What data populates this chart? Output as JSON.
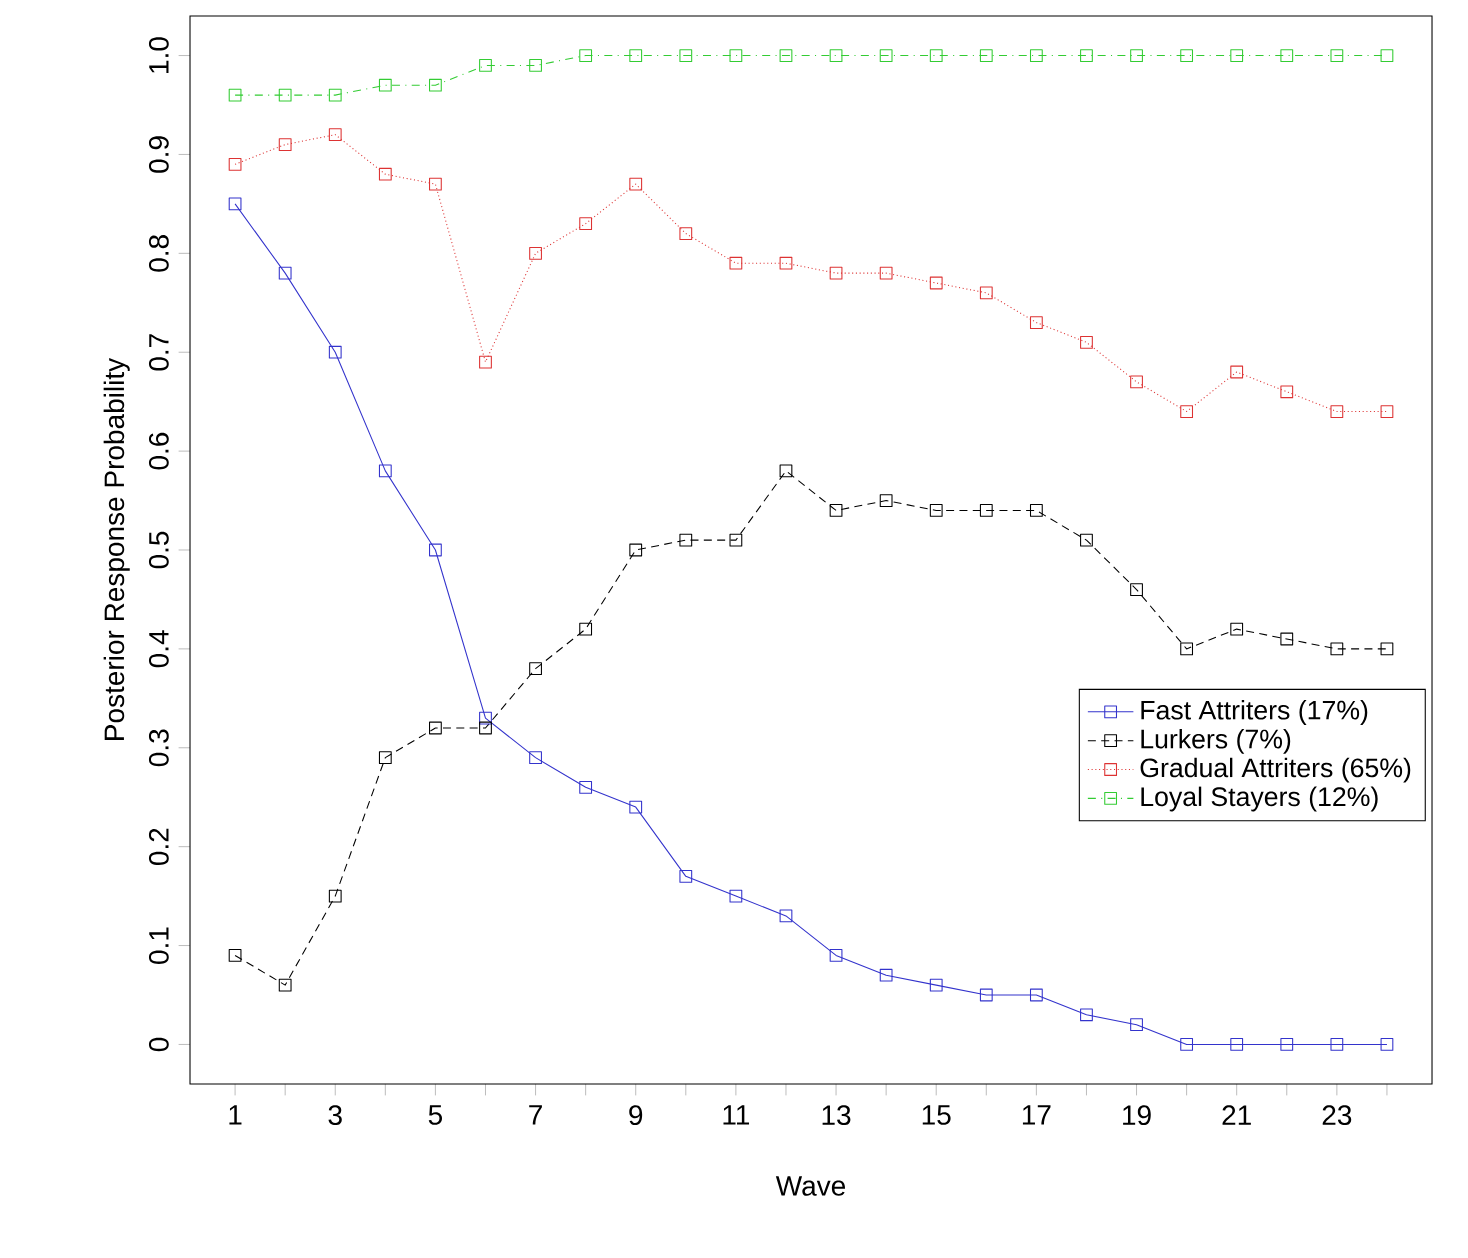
{
  "chart_data": {
    "type": "line",
    "xlabel": "Wave",
    "ylabel": "Posterior Response Probability",
    "x": [
      1,
      2,
      3,
      4,
      5,
      6,
      7,
      8,
      9,
      10,
      11,
      12,
      13,
      14,
      15,
      16,
      17,
      18,
      19,
      20,
      21,
      22,
      23,
      24
    ],
    "xlim": [
      0.1,
      24.9
    ],
    "ylim": [
      -0.04,
      1.04
    ],
    "xticks": [
      1,
      {
        "value": 2,
        "label": null
      },
      3,
      {
        "value": 4,
        "label": null
      },
      5,
      {
        "value": 6,
        "label": null
      },
      7,
      {
        "value": 8,
        "label": null
      },
      9,
      {
        "value": 10,
        "label": null
      },
      11,
      {
        "value": 12,
        "label": null
      },
      13,
      {
        "value": 14,
        "label": null
      },
      15,
      {
        "value": 16,
        "label": null
      },
      17,
      {
        "value": 18,
        "label": null
      },
      19,
      {
        "value": 20,
        "label": null
      },
      21,
      {
        "value": 22,
        "label": null
      },
      23,
      {
        "value": 24,
        "label": null
      }
    ],
    "yticks": [
      0,
      0.1,
      0.2,
      0.3,
      0.4,
      0.5,
      0.6,
      0.7,
      0.8,
      0.9,
      {
        "value": 1.0,
        "label": "1.0"
      }
    ],
    "marker": "square",
    "legend": "right",
    "grid": false,
    "series": [
      {
        "name": "Fast Attriters (17%)",
        "color": "#3333cc",
        "line_style": "solid",
        "values": [
          0.85,
          0.78,
          0.7,
          0.58,
          0.5,
          0.33,
          0.29,
          0.26,
          0.24,
          0.17,
          0.15,
          0.13,
          0.09,
          0.07,
          0.06,
          0.05,
          0.05,
          0.03,
          0.02,
          0,
          0,
          0,
          0,
          0
        ]
      },
      {
        "name": "Lurkers (7%)",
        "color": "#000000",
        "line_style": "dashed",
        "values": [
          0.09,
          0.06,
          0.15,
          0.29,
          0.32,
          0.32,
          0.38,
          0.42,
          0.5,
          0.51,
          0.51,
          0.58,
          0.54,
          0.55,
          0.54,
          0.54,
          0.54,
          0.51,
          0.46,
          0.4,
          0.42,
          0.41,
          0.4,
          0.4
        ]
      },
      {
        "name": "Gradual Attriters (65%)",
        "color": "#dd3333",
        "line_style": "dotted",
        "values": [
          0.89,
          0.91,
          0.92,
          0.88,
          0.87,
          0.69,
          0.8,
          0.83,
          0.87,
          0.82,
          0.79,
          0.79,
          0.78,
          0.78,
          0.77,
          0.76,
          0.73,
          0.71,
          0.67,
          0.64,
          0.68,
          0.66,
          0.64,
          0.64
        ]
      },
      {
        "name": "Loyal Stayers (12%)",
        "color": "#33cc33",
        "line_style": "dashdot",
        "values": [
          0.96,
          0.96,
          0.96,
          0.97,
          0.97,
          0.99,
          0.99,
          1,
          1,
          1,
          1,
          1,
          1,
          1,
          1,
          1,
          1,
          1,
          1,
          1,
          1,
          1,
          1,
          1
        ]
      }
    ]
  }
}
